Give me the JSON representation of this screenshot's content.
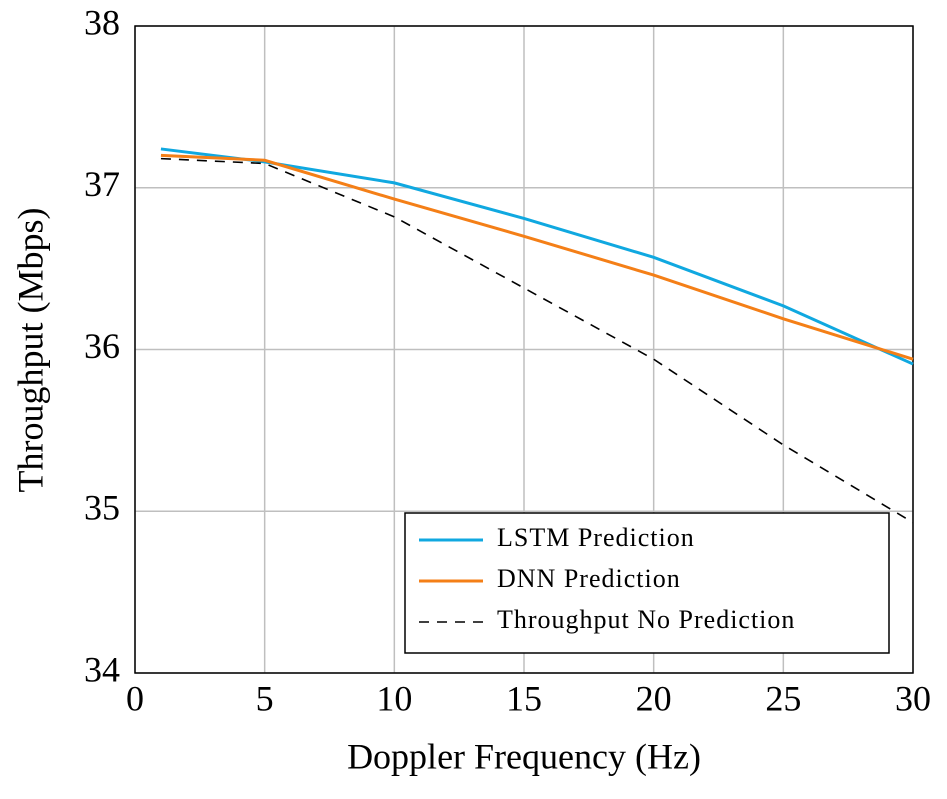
{
  "chart_data": {
    "type": "line",
    "x_label": "Doppler Frequency (Hz)",
    "y_label": "Throughput (Mbps)",
    "x": [
      1,
      5,
      10,
      15,
      20,
      25,
      30
    ],
    "series": [
      {
        "name": "LSTM Prediction",
        "color": "#10a8e0",
        "dash": "solid",
        "values": [
          37.24,
          37.16,
          37.03,
          36.81,
          36.57,
          36.27,
          35.91
        ]
      },
      {
        "name": "DNN Prediction",
        "color": "#f47f17",
        "dash": "solid",
        "values": [
          37.2,
          37.17,
          36.93,
          36.7,
          36.46,
          36.19,
          35.94
        ]
      },
      {
        "name": "Throughput No Prediction",
        "color": "#000000",
        "dash": "dashed",
        "values": [
          37.18,
          37.15,
          36.82,
          36.38,
          35.94,
          35.41,
          34.93
        ]
      }
    ],
    "xlim": [
      0,
      30
    ],
    "xticks": [
      0,
      5,
      10,
      15,
      20,
      25,
      30
    ],
    "ylim": [
      34,
      38
    ],
    "yticks": [
      34,
      35,
      36,
      37,
      38
    ],
    "grid": true,
    "legend_position": "lower-right"
  }
}
